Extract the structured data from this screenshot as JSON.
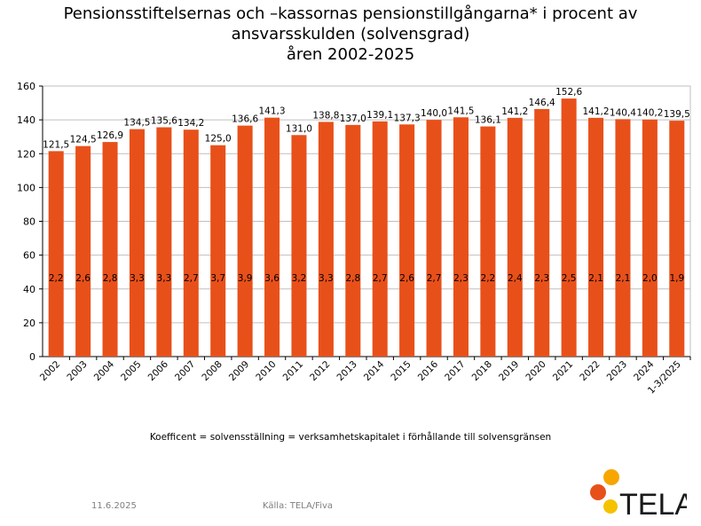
{
  "title_lines": [
    "Pensionsstiftelsernas och –kassornas pensionstillgångarna* i procent av",
    "ansvarsskulden (solvensgrad)",
    "åren 2002-2025"
  ],
  "chart_data": {
    "type": "bar",
    "categories": [
      "2002",
      "2003",
      "2004",
      "2005",
      "2006",
      "2007",
      "2008",
      "2009",
      "2010",
      "2011",
      "2012",
      "2013",
      "2014",
      "2015",
      "2016",
      "2017",
      "2018",
      "2019",
      "2020",
      "2021",
      "2022",
      "2023",
      "2024",
      "1-3/2025"
    ],
    "values": [
      121.5,
      124.5,
      126.9,
      134.5,
      135.6,
      134.2,
      125.0,
      136.6,
      141.3,
      131.0,
      138.8,
      137.0,
      139.1,
      137.3,
      140.0,
      141.5,
      136.1,
      141.2,
      146.4,
      152.6,
      141.2,
      140.4,
      140.2,
      139.5
    ],
    "value_labels": [
      "121,5",
      "124,5",
      "126,9",
      "134,5",
      "135,6",
      "134,2",
      "125,0",
      "136,6",
      "141,3",
      "131,0",
      "138,8",
      "137,0",
      "139,1",
      "137,3",
      "140,0",
      "141,5",
      "136,1",
      "141,2",
      "146,4",
      "152,6",
      "141,2",
      "140,4",
      "140,2",
      "139,5"
    ],
    "coefficients": [
      2.2,
      2.6,
      2.8,
      3.3,
      3.3,
      2.7,
      3.7,
      3.9,
      3.6,
      3.2,
      3.3,
      2.8,
      2.7,
      2.6,
      2.7,
      2.3,
      2.2,
      2.4,
      2.3,
      2.5,
      2.1,
      2.1,
      2.0,
      1.9
    ],
    "coefficient_labels": [
      "2,2",
      "2,6",
      "2,8",
      "3,3",
      "3,3",
      "2,7",
      "3,7",
      "3,9",
      "3,6",
      "3,2",
      "3,3",
      "2,8",
      "2,7",
      "2,6",
      "2,7",
      "2,3",
      "2,2",
      "2,4",
      "2,3",
      "2,5",
      "2,1",
      "2,1",
      "2,0",
      "1,9"
    ],
    "ylim": [
      0,
      160
    ],
    "yticks": [
      0,
      20,
      40,
      60,
      80,
      100,
      120,
      140,
      160
    ],
    "grid": true,
    "bar_color": "#E8501A",
    "gridline_color": "#bfbfbf"
  },
  "footnote": "Koefficent = solvensställning = verksamhetskapitalet i förhållande till solvensgränsen",
  "date": "11.6.2025",
  "source": "Källa: TELA/Fiva",
  "logo": {
    "text": "TELA",
    "icon": "tela-circles-logo-icon",
    "colors": [
      "#F7A600",
      "#E8501A",
      "#F5C200"
    ]
  }
}
